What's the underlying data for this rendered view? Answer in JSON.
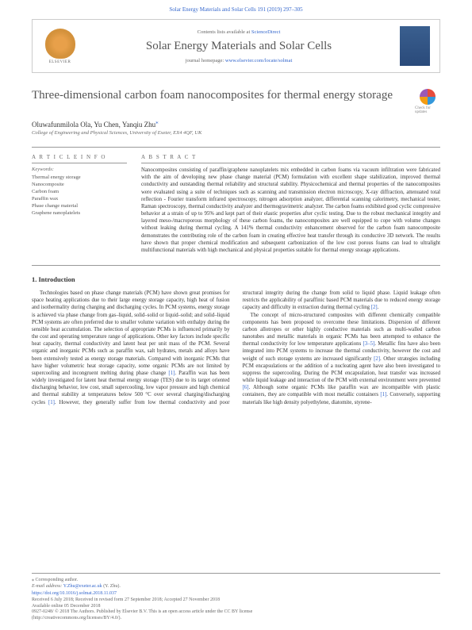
{
  "header": {
    "citation": "Solar Energy Materials and Solar Cells 191 (2019) 297–305",
    "contents_prefix": "Contents lists available at ",
    "contents_link": "ScienceDirect",
    "journal_name": "Solar Energy Materials and Solar Cells",
    "homepage_prefix": "journal homepage: ",
    "homepage_link": "www.elsevier.com/locate/solmat",
    "publisher": "ELSEVIER"
  },
  "article": {
    "title": "Three-dimensional carbon foam nanocomposites for thermal energy storage",
    "check_label": "Check for updates",
    "authors": "Oluwafunmilola Ola, Yu Chen, Yanqiu Zhu",
    "affiliation": "College of Engineering and Physical Sciences, University of Exeter, EX4 4QF, UK"
  },
  "info": {
    "header": "A R T I C L E  I N F O",
    "keywords_label": "Keywords:",
    "keywords": [
      "Thermal energy storage",
      "Nanocomposite",
      "Carbon foam",
      "Paraffin wax",
      "Phase change material",
      "Graphene nanoplatelets"
    ]
  },
  "abstract": {
    "header": "A B S T R A C T",
    "text": "Nanocomposites consisting of paraffin/graphene nanoplatelets mix embedded in carbon foams via vacuum infiltration were fabricated with the aim of developing new phase change material (PCM) formulation with excellent shape stabilization, improved thermal conductivity and outstanding thermal reliability and structural stability. Physicochemical and thermal properties of the nanocomposites were evaluated using a suite of techniques such as scanning and transmission electron microscopy, X-ray diffraction, attenuated total reflection - Fourier transform infrared spectroscopy, nitrogen adsorption analyzer, differential scanning calorimetry, mechanical tester, Raman spectroscopy, thermal conductivity analyzer and thermogravimetric analyzer. The carbon foams exhibited good cyclic compressive behavior at a strain of up to 95% and kept part of their elastic properties after cyclic testing. Due to the robust mechanical integrity and layered meso-/macroporous morphology of these carbon foams, the nanocomposites are well equipped to cope with volume changes without leaking during thermal cycling. A 141% thermal conductivity enhancement observed for the carbon foam nanocomposite demonstrates the contributing role of the carbon foam in creating effective heat transfer through its conductive 3D network. The results have shown that proper chemical modification and subsequent carbonization of the low cost porous foams can lead to ultralight multifunctional materials with high mechanical and physical properties suitable for thermal energy storage applications."
  },
  "intro": {
    "header": "1. Introduction",
    "para1": "Technologies based on phase change materials (PCM) have shown great promises for space heating applications due to their large energy storage capacity, high heat of fusion and isothermality during charging and discharging cycles. In PCM systems, energy storage is achieved via phase change from gas–liquid, solid–solid or liquid–solid; and solid–liquid PCM systems are often preferred due to smaller volume variation with enthalpy during the sensible heat accumulation. The selection of appropriate PCMs is influenced primarily by the cost and operating temperature range of applications. Other key factors include specific heat capacity, thermal conductivity and latent heat per unit mass of the PCM. Several organic and inorganic PCMs such as paraffin wax, salt hydrates, metals and alloys have been extensively tested as energy storage materials. Compared with inorganic PCMs that have higher volumetric heat storage capacity, some organic PCMs are not limited by supercooling and incongruent melting during phase change",
    "ref1": " [1]",
    "para1b": ". Paraffin wax has been widely investigated for latent heat thermal energy storage (TES) due to its target oriented discharging behavior, low cost, small supercooling, low vapor pressure and high chemical and thermal stability at temperatures below 500 °C over several charging/",
    "para2a": "discharging cycles ",
    "ref2": "[1]",
    "para2b": ". However, they generally suffer from low thermal conductivity and poor structural integrity during the change from solid to liquid phase. Liquid leakage often restricts the applicability of paraffinic based PCM materials due to reduced energy storage capacity and difficulty in extraction during thermal cycling ",
    "ref3": "[2]",
    "para2c": ".",
    "para3a": "The concept of micro-structured composites with different chemically compatible components has been proposed to overcome these limitations. Dispersion of different carbon allotropes or other highly conductive materials such as multi-walled carbon nanotubes and metallic materials in organic PCMs has been attempted to enhance the thermal conductivity for low temperature applications ",
    "ref4": "[3–5]",
    "para3b": ". Metallic fins have also been integrated into PCM systems to increase the thermal conductivity, however the cost and weight of such storage systems are increased significantly ",
    "ref5": "[2]",
    "para3c": ". Other strategies including PCM encapsulations or the addition of a nucleating agent have also been investigated to suppress the supercooling. During the PCM encapsulation, heat transfer was increased while liquid leakage and interaction of the PCM with external environment were prevented ",
    "ref6": "[6]",
    "para3d": ". Although some organic PCMs like paraffin wax are incompatible with plastic containers, they are compatible with most metallic containers ",
    "ref7": "[1]",
    "para3e": ". Conversely, supporting materials like high density polyethylene, diatomite, styrene-"
  },
  "footer": {
    "corresp_label": "⁎ Corresponding author.",
    "email_label": "E-mail address: ",
    "email": "Y.Zhu@exeter.ac.uk",
    "email_person": " (Y. Zhu).",
    "doi": "https://doi.org/10.1016/j.solmat.2018.11.037",
    "dates": "Received 6 July 2018; Received in revised form 27 September 2018; Accepted 27 November 2018",
    "available": "Available online 05 December 2018",
    "copyright": "0927-0248/ © 2018 The Authors. Published by Elsevier B.V. This is an open access article under the CC BY license",
    "license": "(http://creativecommons.org/licenses/BY/4.0/)."
  }
}
